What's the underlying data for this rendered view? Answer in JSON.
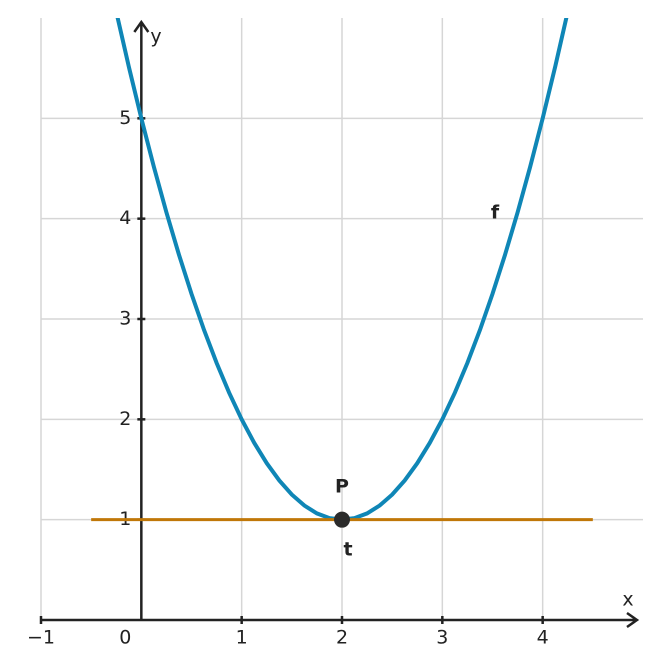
{
  "chart_data": {
    "type": "function-plot",
    "x_label": "x",
    "y_label": "y",
    "xlim": [
      -1,
      5
    ],
    "ylim": [
      0,
      6
    ],
    "xticks": [
      {
        "value": -1,
        "label": "−1"
      },
      0,
      1,
      2,
      3,
      4
    ],
    "yticks": [
      1,
      2,
      3,
      4,
      5
    ],
    "grid": true,
    "series": [
      {
        "name": "f",
        "color": "#0f86b6",
        "x": [
          -0.25,
          -0.125,
          0,
          0.125,
          0.25,
          0.375,
          0.5,
          0.625,
          0.75,
          0.875,
          1,
          1.125,
          1.25,
          1.375,
          1.5,
          1.625,
          1.75,
          1.875,
          2,
          2.125,
          2.25,
          2.375,
          2.5,
          2.625,
          2.75,
          2.875,
          3,
          3.125,
          3.25,
          3.375,
          3.5,
          3.625,
          3.75,
          3.875,
          4,
          4.125,
          4.25
        ],
        "values": [
          6.0625,
          5.515625,
          5,
          4.515625,
          4.0625,
          3.640625,
          3.25,
          2.890625,
          2.5625,
          2.265625,
          2,
          1.765625,
          1.5625,
          1.390625,
          1.25,
          1.140625,
          1.0625,
          1.015625,
          1,
          1.015625,
          1.0625,
          1.140625,
          1.25,
          1.390625,
          1.5625,
          1.765625,
          2,
          2.265625,
          2.5625,
          2.890625,
          3.25,
          3.640625,
          4.0625,
          4.515625,
          5,
          5.515625,
          6.0625
        ]
      },
      {
        "name": "t",
        "color": "#c07708",
        "x": [
          -0.5,
          4.5
        ],
        "values": [
          1,
          1
        ]
      }
    ],
    "points": [
      {
        "name": "P",
        "x": 2,
        "y": 1,
        "color": "#2b2b2b"
      }
    ]
  }
}
